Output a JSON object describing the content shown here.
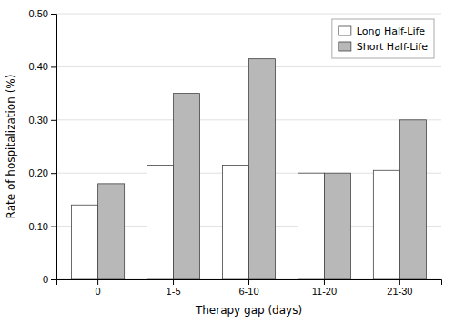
{
  "chart_data": {
    "type": "bar",
    "xlabel": "Therapy gap (days)",
    "ylabel": "Rate of hospitalization (%)",
    "categories": [
      "0",
      "1-5",
      "6-10",
      "11-20",
      "21-30"
    ],
    "series": [
      {
        "name": "Long Half-Life",
        "color": "#ffffff",
        "values": [
          0.14,
          0.215,
          0.215,
          0.2,
          0.205
        ]
      },
      {
        "name": "Short Half-Life",
        "color": "#b8b8b8",
        "values": [
          0.18,
          0.35,
          0.415,
          0.2,
          0.3
        ]
      }
    ],
    "ylim": [
      0,
      0.5
    ],
    "yticks": [
      0,
      {
        "value": 0.1,
        "label": "0.10"
      },
      {
        "value": 0.2,
        "label": "0.20"
      },
      {
        "value": 0.3,
        "label": "0.30"
      },
      {
        "value": 0.4,
        "label": "0.40"
      },
      {
        "value": 0.5,
        "label": "0.50"
      }
    ],
    "grid": true,
    "legend": "upper right"
  }
}
